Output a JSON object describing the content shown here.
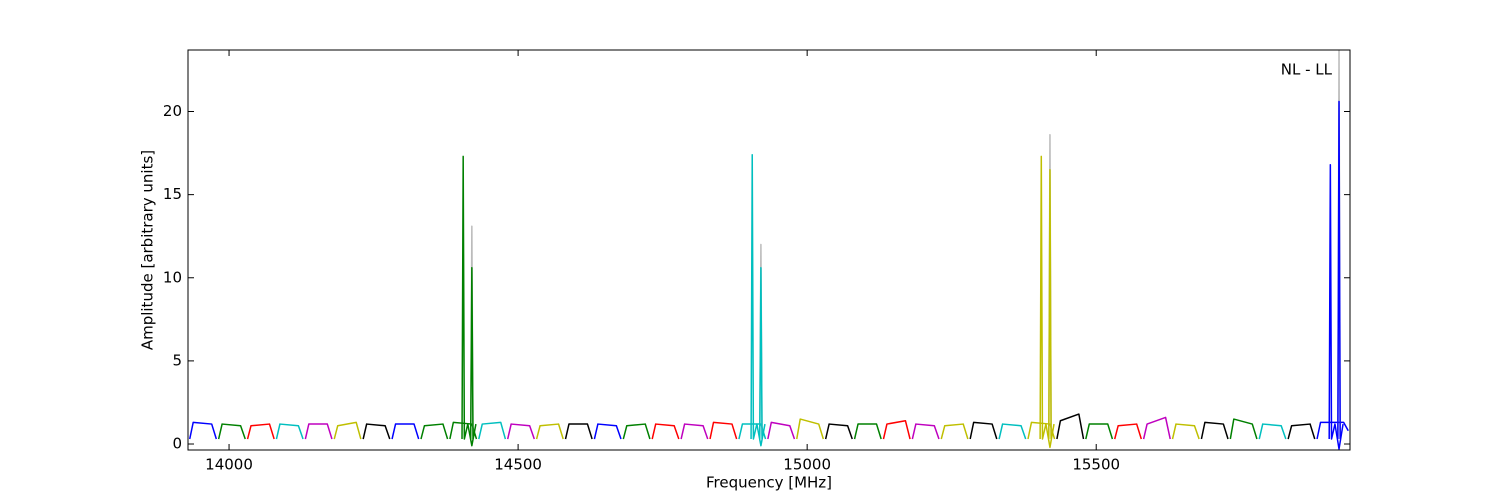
{
  "chart_data": {
    "type": "line",
    "xlabel": "Frequency [MHz]",
    "ylabel": "Amplitude [arbitrary units]",
    "annotation": "NL - LL",
    "xlim": [
      13929,
      15939
    ],
    "ylim": [
      -0.36,
      23.7
    ],
    "xticks": [
      14000,
      14500,
      15000,
      15500
    ],
    "yticks": [
      0,
      5,
      10,
      15,
      20
    ],
    "series": [
      {
        "color": "#0000ff",
        "x": [
          13932,
          13938,
          13970,
          13978
        ],
        "values": [
          0.3,
          1.3,
          1.2,
          0.3
        ]
      },
      {
        "color": "#008000",
        "x": [
          13982,
          13988,
          14020,
          14028
        ],
        "values": [
          0.3,
          1.2,
          1.1,
          0.3
        ]
      },
      {
        "color": "#ff0000",
        "x": [
          14032,
          14038,
          14070,
          14078
        ],
        "values": [
          0.3,
          1.1,
          1.2,
          0.3
        ]
      },
      {
        "color": "#00bfbf",
        "x": [
          14082,
          14088,
          14120,
          14128
        ],
        "values": [
          0.3,
          1.2,
          1.1,
          0.3
        ]
      },
      {
        "color": "#bf00bf",
        "x": [
          14132,
          14138,
          14170,
          14178
        ],
        "values": [
          0.3,
          1.2,
          1.2,
          0.3
        ]
      },
      {
        "color": "#bfbf00",
        "x": [
          14182,
          14188,
          14220,
          14228
        ],
        "values": [
          0.3,
          1.1,
          1.3,
          0.3
        ]
      },
      {
        "color": "#000000",
        "x": [
          14232,
          14238,
          14270,
          14278
        ],
        "values": [
          0.3,
          1.2,
          1.1,
          0.3
        ]
      },
      {
        "color": "#0000ff",
        "x": [
          14282,
          14288,
          14320,
          14328
        ],
        "values": [
          0.3,
          1.2,
          1.2,
          0.3
        ]
      },
      {
        "color": "#008000",
        "x": [
          14332,
          14338,
          14370,
          14378
        ],
        "values": [
          0.3,
          1.1,
          1.2,
          0.3
        ]
      },
      {
        "color": "#008000",
        "x": [
          14382,
          14388,
          14420,
          14428
        ],
        "values": [
          0.3,
          1.3,
          1.2,
          0.3
        ]
      },
      {
        "color": "#00bfbf",
        "x": [
          14432,
          14438,
          14470,
          14478
        ],
        "values": [
          0.3,
          1.2,
          1.3,
          0.3
        ]
      },
      {
        "color": "#bf00bf",
        "x": [
          14482,
          14488,
          14520,
          14528
        ],
        "values": [
          0.3,
          1.2,
          1.1,
          0.3
        ]
      },
      {
        "color": "#bfbf00",
        "x": [
          14532,
          14538,
          14570,
          14578
        ],
        "values": [
          0.3,
          1.1,
          1.2,
          0.3
        ]
      },
      {
        "color": "#000000",
        "x": [
          14582,
          14588,
          14620,
          14628
        ],
        "values": [
          0.3,
          1.2,
          1.2,
          0.3
        ]
      },
      {
        "color": "#0000ff",
        "x": [
          14632,
          14638,
          14670,
          14678
        ],
        "values": [
          0.3,
          1.2,
          1.1,
          0.3
        ]
      },
      {
        "color": "#008000",
        "x": [
          14682,
          14688,
          14720,
          14728
        ],
        "values": [
          0.3,
          1.1,
          1.2,
          0.3
        ]
      },
      {
        "color": "#ff0000",
        "x": [
          14732,
          14738,
          14770,
          14778
        ],
        "values": [
          0.3,
          1.2,
          1.1,
          0.3
        ]
      },
      {
        "color": "#bf00bf",
        "x": [
          14782,
          14788,
          14820,
          14828
        ],
        "values": [
          0.3,
          1.2,
          1.1,
          0.3
        ]
      },
      {
        "color": "#ff0000",
        "x": [
          14832,
          14838,
          14870,
          14878
        ],
        "values": [
          0.3,
          1.3,
          1.2,
          0.3
        ]
      },
      {
        "color": "#00bfbf",
        "x": [
          14882,
          14888,
          14920,
          14928
        ],
        "values": [
          0.3,
          1.2,
          1.2,
          0.3
        ]
      },
      {
        "color": "#bf00bf",
        "x": [
          14932,
          14938,
          14970,
          14978
        ],
        "values": [
          0.3,
          1.3,
          1.1,
          0.3
        ]
      },
      {
        "color": "#bfbf00",
        "x": [
          14982,
          14988,
          15020,
          15028
        ],
        "values": [
          0.3,
          1.5,
          1.2,
          0.3
        ]
      },
      {
        "color": "#000000",
        "x": [
          15032,
          15038,
          15070,
          15078
        ],
        "values": [
          0.3,
          1.2,
          1.1,
          0.3
        ]
      },
      {
        "color": "#008000",
        "x": [
          15082,
          15088,
          15120,
          15128
        ],
        "values": [
          0.3,
          1.2,
          1.2,
          0.3
        ]
      },
      {
        "color": "#ff0000",
        "x": [
          15132,
          15138,
          15170,
          15178
        ],
        "values": [
          0.3,
          1.2,
          1.4,
          0.3
        ]
      },
      {
        "color": "#bf00bf",
        "x": [
          15182,
          15188,
          15220,
          15228
        ],
        "values": [
          0.3,
          1.2,
          1.1,
          0.3
        ]
      },
      {
        "color": "#bfbf00",
        "x": [
          15232,
          15238,
          15270,
          15278
        ],
        "values": [
          0.3,
          1.1,
          1.2,
          0.3
        ]
      },
      {
        "color": "#000000",
        "x": [
          15282,
          15288,
          15320,
          15328
        ],
        "values": [
          0.3,
          1.3,
          1.2,
          0.3
        ]
      },
      {
        "color": "#00bfbf",
        "x": [
          15332,
          15338,
          15370,
          15378
        ],
        "values": [
          0.3,
          1.2,
          1.1,
          0.3
        ]
      },
      {
        "color": "#bfbf00",
        "x": [
          15382,
          15388,
          15420,
          15428
        ],
        "values": [
          0.3,
          1.3,
          1.2,
          0.3
        ]
      },
      {
        "color": "#000000",
        "x": [
          15432,
          15438,
          15470,
          15478
        ],
        "values": [
          0.3,
          1.4,
          1.8,
          0.3
        ]
      },
      {
        "color": "#008000",
        "x": [
          15482,
          15488,
          15520,
          15528
        ],
        "values": [
          0.3,
          1.2,
          1.2,
          0.3
        ]
      },
      {
        "color": "#ff0000",
        "x": [
          15532,
          15538,
          15570,
          15578
        ],
        "values": [
          0.3,
          1.1,
          1.2,
          0.3
        ]
      },
      {
        "color": "#bf00bf",
        "x": [
          15582,
          15588,
          15620,
          15628
        ],
        "values": [
          0.3,
          1.2,
          1.6,
          0.3
        ]
      },
      {
        "color": "#bfbf00",
        "x": [
          15632,
          15638,
          15670,
          15678
        ],
        "values": [
          0.3,
          1.2,
          1.1,
          0.3
        ]
      },
      {
        "color": "#000000",
        "x": [
          15682,
          15688,
          15720,
          15728
        ],
        "values": [
          0.3,
          1.3,
          1.2,
          0.3
        ]
      },
      {
        "color": "#008000",
        "x": [
          15732,
          15738,
          15770,
          15778
        ],
        "values": [
          0.3,
          1.5,
          1.2,
          0.3
        ]
      },
      {
        "color": "#00bfbf",
        "x": [
          15782,
          15788,
          15820,
          15828
        ],
        "values": [
          0.3,
          1.2,
          1.1,
          0.3
        ]
      },
      {
        "color": "#000000",
        "x": [
          15832,
          15838,
          15870,
          15878
        ],
        "values": [
          0.3,
          1.1,
          1.2,
          0.3
        ]
      },
      {
        "color": "#0000ff",
        "x": [
          15882,
          15888,
          15928,
          15936
        ],
        "values": [
          0.3,
          1.3,
          1.3,
          0.8
        ]
      },
      {
        "color": "#bbbbbb",
        "x": [
          14418,
          14420,
          14422
        ],
        "values": [
          0.5,
          13.1,
          0.5
        ]
      },
      {
        "color": "#bbbbbb",
        "x": [
          14918,
          14920,
          14922
        ],
        "values": [
          0.5,
          12.0,
          0.5
        ]
      },
      {
        "color": "#bbbbbb",
        "x": [
          15418,
          15420,
          15422
        ],
        "values": [
          0.5,
          18.6,
          0.5
        ]
      },
      {
        "color": "#bbbbbb",
        "x": [
          15918,
          15920,
          15922
        ],
        "values": [
          0.5,
          23.7,
          0.5
        ]
      },
      {
        "color": "#008000",
        "x": [
          14403,
          14405,
          14407,
          14413,
          14420,
          14427
        ],
        "values": [
          0.3,
          17.3,
          0.3,
          1.2,
          -0.1,
          1.2
        ]
      },
      {
        "color": "#008000",
        "x": [
          14418,
          14420,
          14422
        ],
        "values": [
          0.3,
          10.6,
          0.3
        ]
      },
      {
        "color": "#00bfbf",
        "x": [
          14903,
          14905,
          14907,
          14913,
          14920,
          14927
        ],
        "values": [
          0.3,
          17.4,
          0.3,
          1.2,
          -0.1,
          1.2
        ]
      },
      {
        "color": "#00bfbf",
        "x": [
          14918,
          14920,
          14922
        ],
        "values": [
          0.3,
          10.6,
          0.3
        ]
      },
      {
        "color": "#bfbf00",
        "x": [
          15403,
          15405,
          15407,
          15413,
          15420,
          15427
        ],
        "values": [
          0.3,
          17.3,
          0.3,
          1.2,
          -0.2,
          1.2
        ]
      },
      {
        "color": "#bfbf00",
        "x": [
          15418,
          15420,
          15422
        ],
        "values": [
          0.3,
          16.5,
          0.3
        ]
      },
      {
        "color": "#0000ff",
        "x": [
          15903,
          15905,
          15907,
          15913,
          15920,
          15927
        ],
        "values": [
          0.3,
          16.8,
          0.3,
          1.2,
          -0.3,
          1.2
        ]
      },
      {
        "color": "#0000ff",
        "x": [
          15918,
          15920,
          15922
        ],
        "values": [
          0.3,
          20.6,
          0.3
        ]
      }
    ]
  }
}
